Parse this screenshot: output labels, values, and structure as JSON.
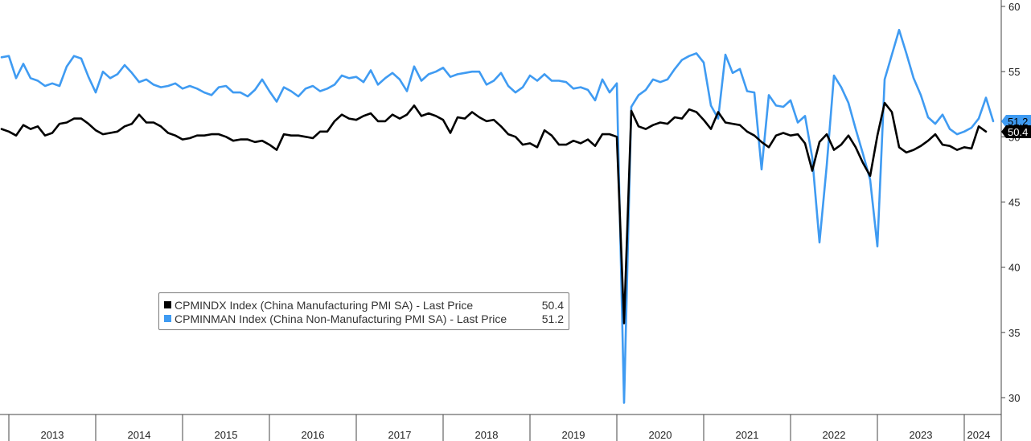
{
  "chart_data": {
    "type": "line",
    "x_start": "2012-12",
    "x_end": "2024-04",
    "year_labels": [
      "2013",
      "2014",
      "2015",
      "2016",
      "2017",
      "2018",
      "2019",
      "2020",
      "2021",
      "2022",
      "2023",
      "2024"
    ],
    "yticks": [
      30,
      35,
      40,
      45,
      50,
      55,
      60
    ],
    "ylim": [
      29,
      61
    ],
    "grid": false,
    "legend_position": "bottom-left",
    "series": [
      {
        "name": "CPMINDX Index (China Manufacturing PMI SA) - Last Price",
        "last_price": "50.4",
        "badge": "50.4",
        "color": "#000000",
        "values": [
          50.6,
          50.4,
          50.1,
          50.9,
          50.6,
          50.8,
          50.1,
          50.3,
          51.0,
          51.1,
          51.4,
          51.4,
          51.0,
          50.5,
          50.2,
          50.3,
          50.4,
          50.8,
          51.0,
          51.7,
          51.1,
          51.1,
          50.8,
          50.3,
          50.1,
          49.8,
          49.9,
          50.1,
          50.1,
          50.2,
          50.2,
          50.0,
          49.7,
          49.8,
          49.8,
          49.6,
          49.7,
          49.4,
          49.0,
          50.2,
          50.1,
          50.1,
          50.0,
          49.9,
          50.4,
          50.4,
          51.2,
          51.7,
          51.4,
          51.3,
          51.6,
          51.8,
          51.2,
          51.2,
          51.7,
          51.4,
          51.7,
          52.4,
          51.6,
          51.8,
          51.6,
          51.3,
          50.3,
          51.5,
          51.4,
          51.9,
          51.5,
          51.2,
          51.3,
          50.8,
          50.2,
          50.0,
          49.4,
          49.5,
          49.2,
          50.5,
          50.1,
          49.4,
          49.4,
          49.7,
          49.5,
          49.8,
          49.3,
          50.2,
          50.2,
          50.0,
          35.7,
          52.0,
          50.8,
          50.6,
          50.9,
          51.1,
          51.0,
          51.5,
          51.4,
          52.1,
          51.9,
          51.3,
          50.6,
          51.9,
          51.1,
          51.0,
          50.9,
          50.4,
          50.1,
          49.6,
          49.2,
          50.1,
          50.3,
          50.1,
          50.2,
          49.5,
          47.4,
          49.6,
          50.2,
          49.0,
          49.4,
          50.1,
          49.2,
          48.0,
          47.0,
          50.1,
          52.6,
          51.9,
          49.2,
          48.8,
          49.0,
          49.3,
          49.7,
          50.2,
          49.4,
          49.3,
          49.0,
          49.2,
          49.1,
          50.8,
          50.4
        ]
      },
      {
        "name": "CPMINMAN Index (China Non-Manufacturing PMI SA) - Last Price",
        "last_price": "51.2",
        "badge": "51.2",
        "color": "#3f9bf2",
        "values": [
          56.1,
          56.2,
          54.5,
          55.6,
          54.5,
          54.3,
          53.9,
          54.1,
          53.9,
          55.4,
          56.2,
          56.0,
          54.6,
          53.4,
          55.0,
          54.5,
          54.8,
          55.5,
          54.9,
          54.2,
          54.4,
          54.0,
          53.8,
          53.9,
          54.1,
          53.7,
          53.9,
          53.7,
          53.4,
          53.2,
          53.8,
          53.9,
          53.4,
          53.4,
          53.1,
          53.6,
          54.4,
          53.5,
          52.7,
          53.8,
          53.5,
          53.1,
          53.7,
          53.9,
          53.5,
          53.7,
          54.0,
          54.7,
          54.5,
          54.6,
          54.2,
          55.1,
          54.0,
          54.5,
          54.9,
          54.4,
          53.5,
          55.4,
          54.3,
          54.8,
          55.0,
          55.3,
          54.6,
          54.8,
          54.9,
          55.0,
          55.0,
          54.0,
          54.3,
          54.9,
          53.9,
          53.4,
          53.8,
          54.7,
          54.3,
          54.8,
          54.3,
          54.3,
          54.2,
          53.7,
          53.8,
          53.6,
          52.8,
          54.4,
          53.4,
          54.1,
          29.6,
          52.3,
          53.2,
          53.6,
          54.4,
          54.2,
          54.4,
          55.2,
          55.9,
          56.2,
          56.4,
          55.7,
          52.4,
          51.4,
          56.3,
          54.9,
          55.2,
          53.5,
          53.4,
          47.5,
          53.2,
          52.4,
          52.3,
          52.8,
          51.1,
          51.6,
          48.4,
          41.9,
          47.8,
          54.7,
          53.8,
          52.6,
          50.6,
          48.7,
          46.7,
          41.6,
          54.4,
          56.3,
          58.2,
          56.4,
          54.5,
          53.2,
          51.5,
          51.0,
          51.7,
          50.6,
          50.2,
          50.4,
          50.7,
          51.4,
          53.0,
          51.2
        ]
      }
    ]
  }
}
